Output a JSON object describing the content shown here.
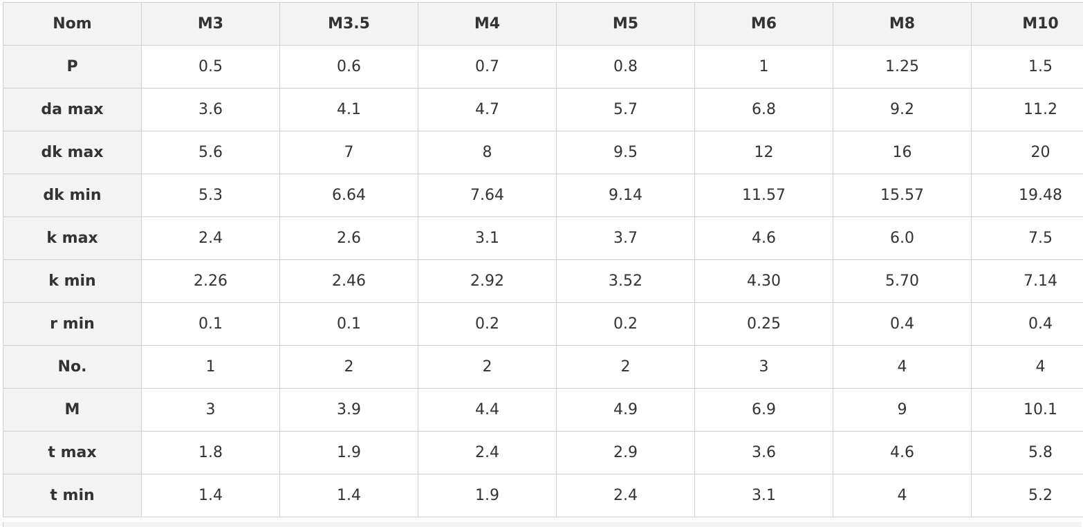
{
  "table": {
    "headers": [
      "Nom",
      "M3",
      "M3.5",
      "M4",
      "M5",
      "M6",
      "M8",
      "M10"
    ],
    "rows": [
      {
        "label": "P",
        "values": [
          "0.5",
          "0.6",
          "0.7",
          "0.8",
          "1",
          "1.25",
          "1.5"
        ]
      },
      {
        "label": "da max",
        "values": [
          "3.6",
          "4.1",
          "4.7",
          "5.7",
          "6.8",
          "9.2",
          "11.2"
        ]
      },
      {
        "label": "dk max",
        "values": [
          "5.6",
          "7",
          "8",
          "9.5",
          "12",
          "16",
          "20"
        ]
      },
      {
        "label": "dk min",
        "values": [
          "5.3",
          "6.64",
          "7.64",
          "9.14",
          "11.57",
          "15.57",
          "19.48"
        ]
      },
      {
        "label": "k max",
        "values": [
          "2.4",
          "2.6",
          "3.1",
          "3.7",
          "4.6",
          "6.0",
          "7.5"
        ]
      },
      {
        "label": "k min",
        "values": [
          "2.26",
          "2.46",
          "2.92",
          "3.52",
          "4.30",
          "5.70",
          "7.14"
        ]
      },
      {
        "label": "r min",
        "values": [
          "0.1",
          "0.1",
          "0.2",
          "0.2",
          "0.25",
          "0.4",
          "0.4"
        ]
      },
      {
        "label": "No.",
        "values": [
          "1",
          "2",
          "2",
          "2",
          "3",
          "4",
          "4"
        ]
      },
      {
        "label": "M",
        "values": [
          "3",
          "3.9",
          "4.4",
          "4.9",
          "6.9",
          "9",
          "10.1"
        ]
      },
      {
        "label": "t max",
        "values": [
          "1.8",
          "1.9",
          "2.4",
          "2.9",
          "3.6",
          "4.6",
          "5.8"
        ]
      },
      {
        "label": "t min",
        "values": [
          "1.4",
          "1.4",
          "1.9",
          "2.4",
          "3.1",
          "4",
          "5.2"
        ]
      }
    ]
  }
}
